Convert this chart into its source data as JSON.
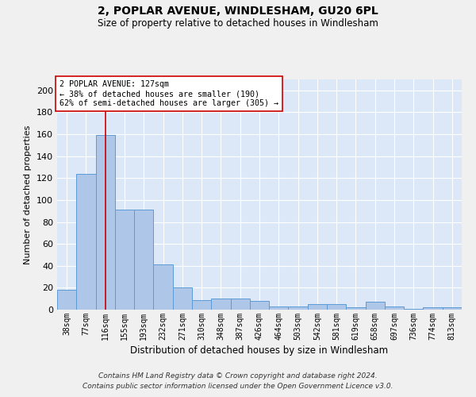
{
  "title1": "2, POPLAR AVENUE, WINDLESHAM, GU20 6PL",
  "title2": "Size of property relative to detached houses in Windlesham",
  "xlabel": "Distribution of detached houses by size in Windlesham",
  "ylabel": "Number of detached properties",
  "categories": [
    "38sqm",
    "77sqm",
    "116sqm",
    "155sqm",
    "193sqm",
    "232sqm",
    "271sqm",
    "310sqm",
    "348sqm",
    "387sqm",
    "426sqm",
    "464sqm",
    "503sqm",
    "542sqm",
    "581sqm",
    "619sqm",
    "658sqm",
    "697sqm",
    "736sqm",
    "774sqm",
    "813sqm"
  ],
  "values": [
    18,
    124,
    159,
    91,
    91,
    41,
    20,
    9,
    10,
    10,
    8,
    3,
    3,
    5,
    5,
    2,
    7,
    3,
    1,
    2,
    2
  ],
  "bar_color": "#aec6e8",
  "bar_edge_color": "#5b9bd5",
  "background_color": "#dce8f8",
  "fig_background": "#f0f0f0",
  "grid_color": "#ffffff",
  "vline_x_index": 2,
  "vline_color": "#cc0000",
  "annotation_text": "2 POPLAR AVENUE: 127sqm\n← 38% of detached houses are smaller (190)\n62% of semi-detached houses are larger (305) →",
  "annotation_box_color": "#ffffff",
  "annotation_box_edge": "#cc0000",
  "footer1": "Contains HM Land Registry data © Crown copyright and database right 2024.",
  "footer2": "Contains public sector information licensed under the Open Government Licence v3.0.",
  "ylim": [
    0,
    210
  ],
  "yticks": [
    0,
    20,
    40,
    60,
    80,
    100,
    120,
    140,
    160,
    180,
    200
  ]
}
